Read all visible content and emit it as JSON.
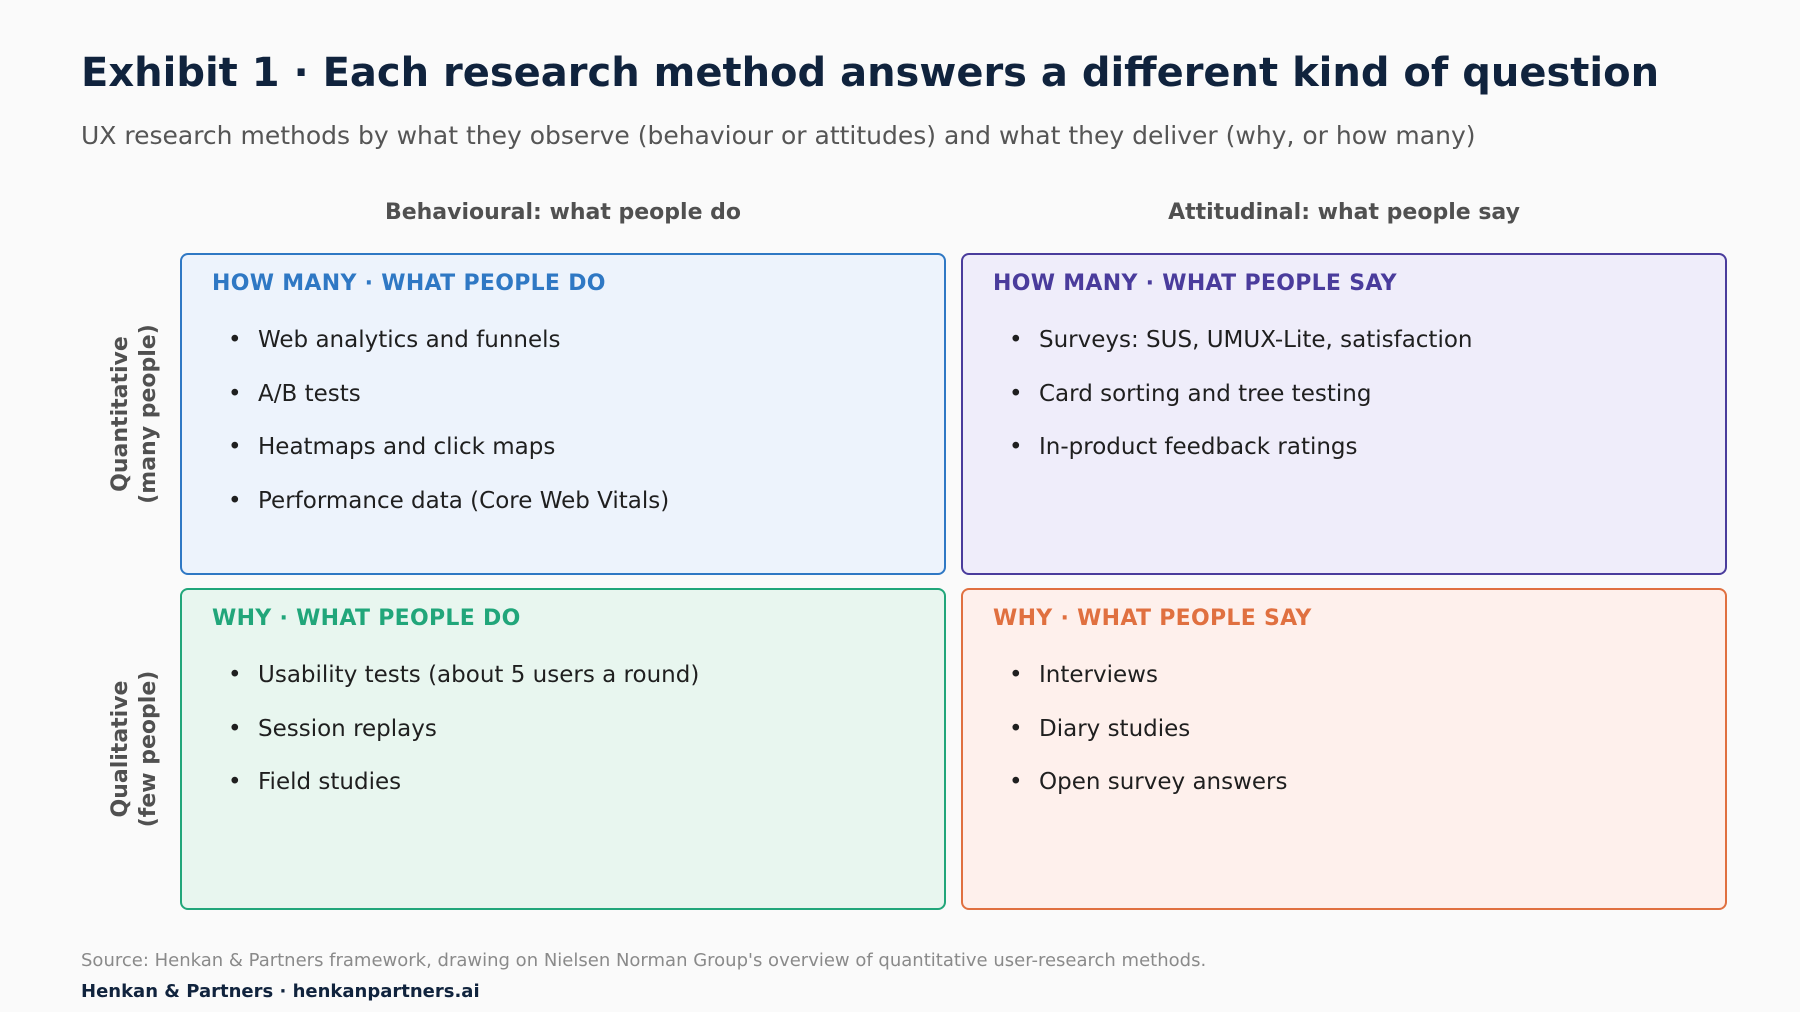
{
  "header": {
    "title": "Exhibit 1 · Each research method answers a different kind of question",
    "subtitle": "UX research methods by what they observe (behaviour or attitudes) and what they deliver (why, or how many)"
  },
  "columns": {
    "behavioural": "Behavioural: what people do",
    "attitudinal": "Attitudinal: what people say"
  },
  "rows": {
    "quantitative": {
      "line1": "Quantitative",
      "line2": "(many people)"
    },
    "qualitative": {
      "line1": "Qualitative",
      "line2": "(few people)"
    }
  },
  "bullet": "•",
  "quadrants": {
    "top_left": {
      "heading": "HOW MANY · WHAT PEOPLE DO",
      "color": "#2f78c4",
      "items": [
        "Web analytics and funnels",
        "A/B tests",
        "Heatmaps and click maps",
        "Performance data (Core Web Vitals)"
      ]
    },
    "top_right": {
      "heading": "HOW MANY · WHAT PEOPLE SAY",
      "color": "#4a3c9c",
      "items": [
        "Surveys: SUS, UMUX-Lite, satisfaction",
        "Card sorting and tree testing",
        "In-product feedback ratings"
      ]
    },
    "bottom_left": {
      "heading": "WHY · WHAT PEOPLE DO",
      "color": "#21a67a",
      "items": [
        "Usability tests (about 5 users a round)",
        "Session replays",
        "Field studies"
      ]
    },
    "bottom_right": {
      "heading": "WHY · WHAT PEOPLE SAY",
      "color": "#e07040",
      "items": [
        "Interviews",
        "Diary studies",
        "Open survey answers"
      ]
    }
  },
  "footer": {
    "source": "Source: Henkan & Partners framework, drawing on Nielsen Norman Group's overview of quantitative user-research methods.",
    "brand": "Henkan & Partners · henkanpartners.ai"
  }
}
